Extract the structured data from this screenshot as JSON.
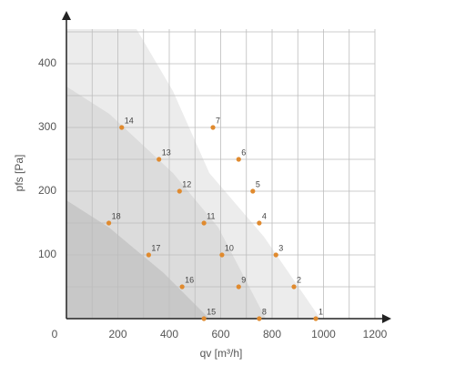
{
  "chart_data": {
    "type": "scatter",
    "x_label": "qv [m³/h]",
    "y_label": "pfs [Pa]",
    "labels": [
      "1",
      "2",
      "3",
      "4",
      "5",
      "6",
      "7",
      "8",
      "9",
      "10",
      "11",
      "12",
      "13",
      "14",
      "15",
      "16",
      "17",
      "18"
    ],
    "x": [
      970,
      885,
      815,
      750,
      725,
      670,
      570,
      750,
      670,
      605,
      535,
      440,
      360,
      215,
      535,
      450,
      320,
      165
    ],
    "y": [
      0,
      50,
      100,
      150,
      200,
      250,
      300,
      0,
      50,
      100,
      150,
      200,
      250,
      300,
      0,
      50,
      100,
      150
    ],
    "color": "#e08a2e",
    "xlim": [
      0,
      1200
    ],
    "ylim": [
      0,
      450
    ],
    "xticks": [
      0,
      200,
      400,
      600,
      800,
      1000,
      1200
    ],
    "yticks": [
      100,
      200,
      300,
      400
    ],
    "grid": true
  }
}
